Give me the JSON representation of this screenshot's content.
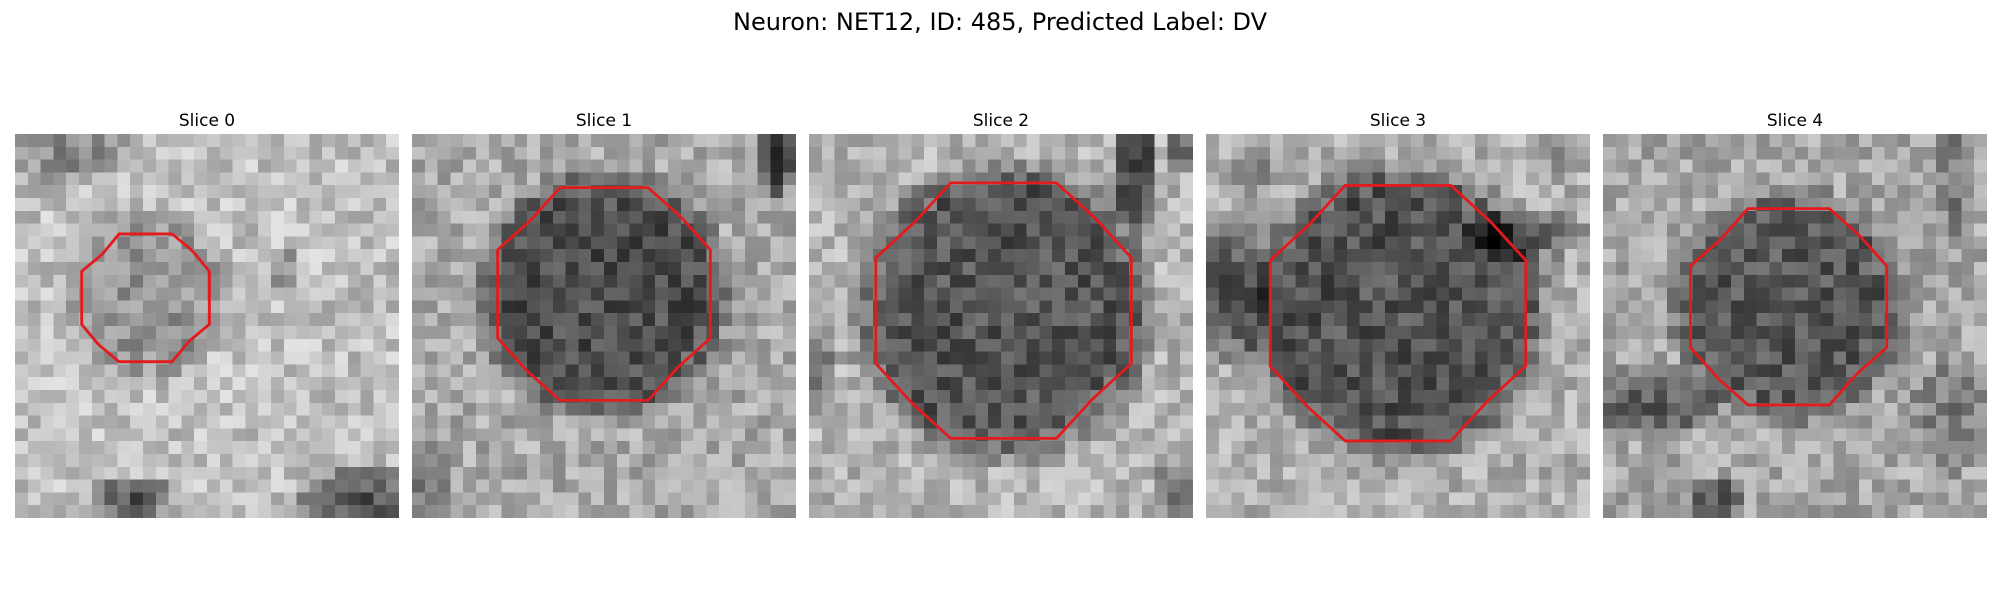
{
  "figure": {
    "title": "Neuron: NET12, ID: 485, Predicted Label: DV"
  },
  "panels": [
    {
      "title": "Slice 0"
    },
    {
      "title": "Slice 1"
    },
    {
      "title": "Slice 2"
    },
    {
      "title": "Slice 3"
    },
    {
      "title": "Slice 4"
    }
  ],
  "contour_color": "#e41a1c",
  "colormap": "gray"
}
